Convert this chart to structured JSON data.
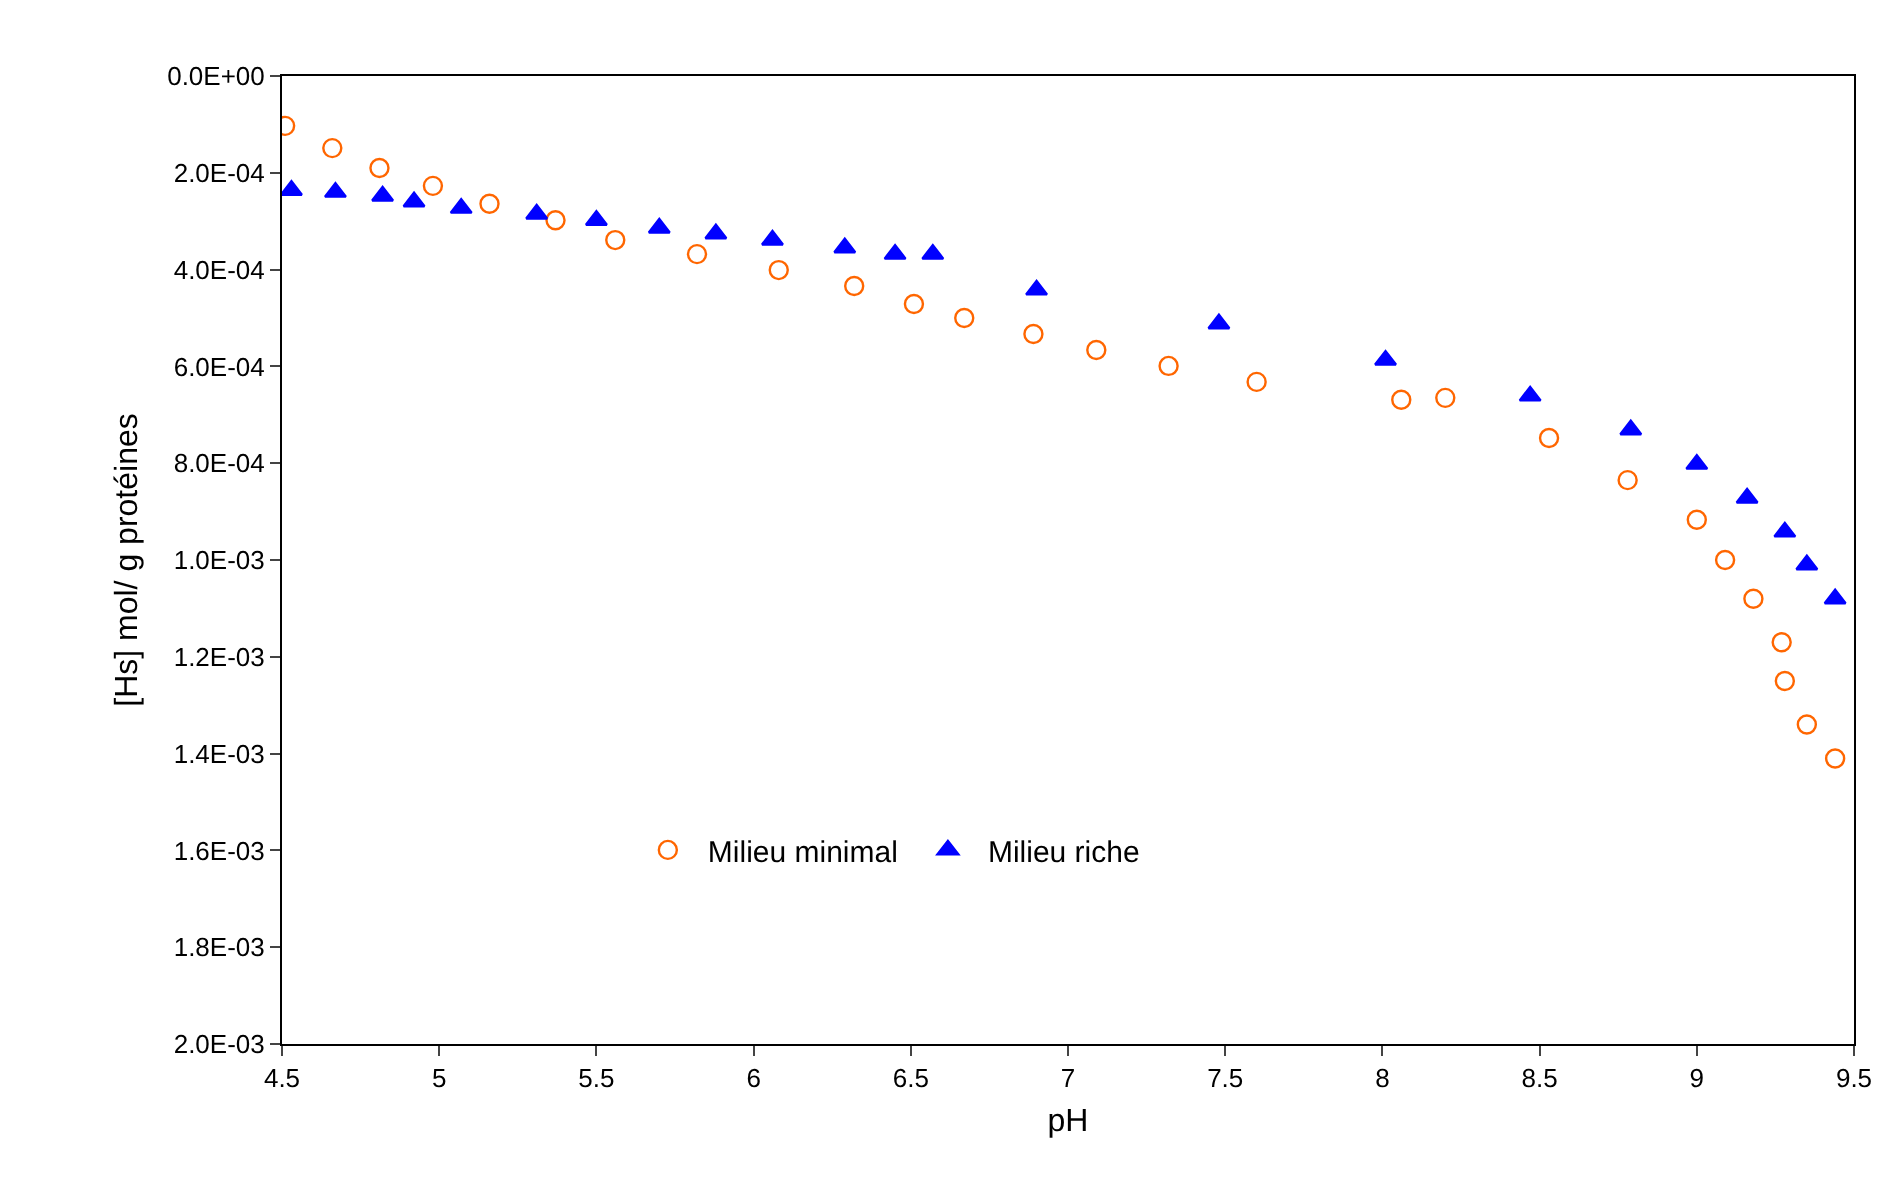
{
  "chart_data": {
    "type": "scatter",
    "xlabel": "pH",
    "ylabel": "[Hs] mol/ g protéines",
    "xlim": [
      4.5,
      9.5
    ],
    "xticks": [
      4.5,
      5,
      5.5,
      6,
      6.5,
      7,
      7.5,
      8,
      8.5,
      9,
      9.5
    ],
    "ylim": [
      0.002,
      0
    ],
    "yticks": [
      {
        "value": 0,
        "label": "0.0E+00"
      },
      {
        "value": 0.0002,
        "label": "2.0E-04"
      },
      {
        "value": 0.0004,
        "label": "4.0E-04"
      },
      {
        "value": 0.0006,
        "label": "6.0E-04"
      },
      {
        "value": 0.0008,
        "label": "8.0E-04"
      },
      {
        "value": 0.001,
        "label": "1.0E-03"
      },
      {
        "value": 0.0012,
        "label": "1.2E-03"
      },
      {
        "value": 0.0014,
        "label": "1.4E-03"
      },
      {
        "value": 0.0016,
        "label": "1.6E-03"
      },
      {
        "value": 0.0018,
        "label": "1.8E-03"
      },
      {
        "value": 0.002,
        "label": "2.0E-03"
      }
    ],
    "grid": false,
    "legend": "bottom",
    "series": [
      {
        "name": "Milieu minimal",
        "color": "#ff6600",
        "marker": "circle-open",
        "x": [
          4.51,
          4.66,
          4.81,
          4.98,
          5.16,
          5.37,
          5.56,
          5.82,
          6.08,
          6.32,
          6.51,
          6.67,
          6.89,
          7.09,
          7.32,
          7.6,
          8.06,
          8.2,
          8.53,
          8.78,
          9.0,
          9.09,
          9.18,
          9.27,
          9.28,
          9.35,
          9.44
        ],
        "values": [
          0.000103,
          0.000149,
          0.00019,
          0.000227,
          0.000264,
          0.000298,
          0.000339,
          0.000368,
          0.000401,
          0.000434,
          0.000471,
          0.0005,
          0.000533,
          0.000566,
          0.000599,
          0.000632,
          0.000669,
          0.000665,
          0.000748,
          0.000835,
          0.000917,
          0.001,
          0.00108,
          0.00117,
          0.00125,
          0.00134,
          0.00141
        ]
      },
      {
        "name": "Milieu riche",
        "color": "#0000ff",
        "marker": "triangle",
        "x": [
          4.53,
          4.67,
          4.82,
          4.92,
          5.07,
          5.31,
          5.5,
          5.7,
          5.88,
          6.06,
          6.29,
          6.45,
          6.57,
          6.9,
          7.48,
          8.01,
          8.47,
          8.79,
          9.0,
          9.16,
          9.28,
          9.35,
          9.44
        ],
        "values": [
          0.000236,
          0.00024,
          0.000248,
          0.00026,
          0.000273,
          0.000285,
          0.000298,
          0.000314,
          0.000326,
          0.000339,
          0.000355,
          0.000368,
          0.000368,
          0.000442,
          0.000512,
          0.000587,
          0.000661,
          0.000731,
          0.000802,
          0.000872,
          0.000942,
          0.00101,
          0.00108
        ]
      }
    ]
  }
}
